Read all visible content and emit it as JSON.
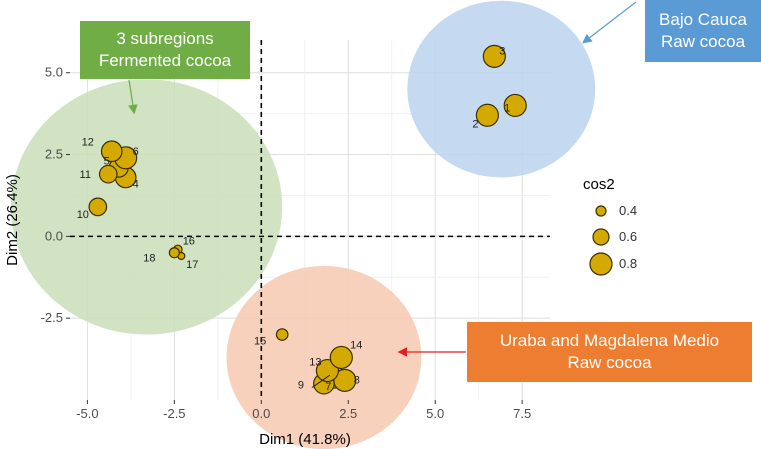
{
  "chart_data": {
    "type": "scatter",
    "xlabel": "Dim1 (41.8%)",
    "ylabel": "Dim2 (26.4%)",
    "xlim": [
      -5.5,
      8.3
    ],
    "ylim": [
      -5.0,
      6.0
    ],
    "x_ticks": [
      -5.0,
      -2.5,
      0.0,
      2.5,
      5.0,
      7.5
    ],
    "x_tick_labels": [
      "-5.0",
      "-2.5",
      "0.0",
      "2.5",
      "5.0",
      "7.5"
    ],
    "y_ticks": [
      -2.5,
      0.0,
      2.5,
      5.0
    ],
    "y_tick_labels": [
      "-2.5",
      "0.0",
      "2.5",
      "5.0"
    ],
    "grid": true,
    "point_color": "#D4A900",
    "point_stroke": "#3a3000",
    "points": [
      {
        "label": "1",
        "x": 7.3,
        "y": 4.0,
        "cos2": 0.8
      },
      {
        "label": "2",
        "x": 6.5,
        "y": 3.7,
        "cos2": 0.8
      },
      {
        "label": "3",
        "x": 6.7,
        "y": 5.5,
        "cos2": 0.8
      },
      {
        "label": "4",
        "x": -3.9,
        "y": 1.8,
        "cos2": 0.75
      },
      {
        "label": "5",
        "x": -4.1,
        "y": 2.1,
        "cos2": 0.7
      },
      {
        "label": "6",
        "x": -3.9,
        "y": 2.4,
        "cos2": 0.8
      },
      {
        "label": "7",
        "x": 2.1,
        "y": -4.3,
        "cos2": 0.8
      },
      {
        "label": "8",
        "x": 2.4,
        "y": -4.4,
        "cos2": 0.8
      },
      {
        "label": "9",
        "x": 1.8,
        "y": -4.5,
        "cos2": 0.75
      },
      {
        "label": "10",
        "x": -4.7,
        "y": 0.9,
        "cos2": 0.65
      },
      {
        "label": "11",
        "x": -4.4,
        "y": 1.9,
        "cos2": 0.65
      },
      {
        "label": "12",
        "x": -4.3,
        "y": 2.6,
        "cos2": 0.75
      },
      {
        "label": "13",
        "x": 1.9,
        "y": -4.1,
        "cos2": 0.8
      },
      {
        "label": "14",
        "x": 2.3,
        "y": -3.7,
        "cos2": 0.8
      },
      {
        "label": "15",
        "x": 0.6,
        "y": -3.0,
        "cos2": 0.45
      },
      {
        "label": "16",
        "x": -2.4,
        "y": -0.4,
        "cos2": 0.35
      },
      {
        "label": "17",
        "x": -2.3,
        "y": -0.6,
        "cos2": 0.3
      },
      {
        "label": "18",
        "x": -2.5,
        "y": -0.5,
        "cos2": 0.4
      }
    ],
    "groups": [
      {
        "color": "#C9DEB9",
        "cx": -3.3,
        "cy": 0.9,
        "r": 3.9
      },
      {
        "color": "#BBD3EF",
        "cx": 6.9,
        "cy": 4.5,
        "r": 2.7
      },
      {
        "color": "#F6C9AF",
        "cx": 1.8,
        "cy": -3.7,
        "r": 2.8
      }
    ],
    "legend": {
      "title": "cos2",
      "placement": "right",
      "entries": [
        {
          "label": "0.4",
          "value": 0.4
        },
        {
          "label": "0.6",
          "value": 0.6
        },
        {
          "label": "0.8",
          "value": 0.8
        }
      ]
    }
  },
  "annotations": {
    "green": {
      "line1": "3 subregions",
      "line2": "Fermented cocoa",
      "color": "#70AD47"
    },
    "blue": {
      "line1": "Bajo Cauca",
      "line2": "Raw cocoa",
      "color": "#5B9BD5"
    },
    "orange": {
      "line1": "Uraba and Magdalena Medio",
      "line2": "Raw cocoa",
      "color": "#ED7D31"
    }
  }
}
